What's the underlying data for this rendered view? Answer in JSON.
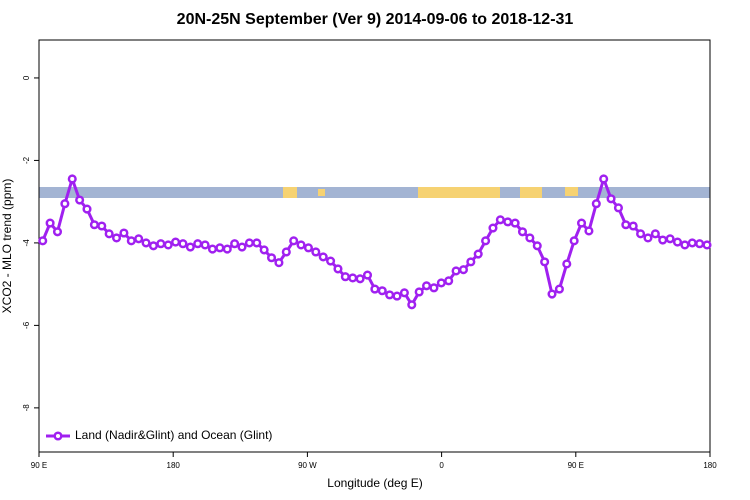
{
  "chart_data": {
    "type": "line",
    "title": "20N-25N September (Ver 9)   2014-09-06 to 2018-12-31",
    "x_label": "Longitude (deg E)",
    "y_label": "XCO2 - MLO trend (ppm)",
    "xlim": [
      90,
      540
    ],
    "ylim": [
      -9.07,
      0.92
    ],
    "xticks": [
      {
        "value": 90,
        "label": "90 E"
      },
      180,
      {
        "value": 270,
        "label": "90 W"
      },
      {
        "value": 360,
        "label": "0"
      },
      {
        "value": 450,
        "label": "90 E"
      },
      {
        "value": 540,
        "label": "180"
      }
    ],
    "yticks": [
      0,
      -2,
      -4,
      -6,
      -8
    ],
    "legend": "bottom-left",
    "x": [
      92.5,
      97.45,
      102.4,
      107.35,
      112.3,
      117.25,
      122.2,
      127.15,
      132.1,
      137.05,
      142,
      146.95,
      151.9,
      156.85,
      161.8,
      166.75,
      171.7,
      176.65,
      181.6,
      186.55,
      191.5,
      196.45,
      201.4,
      206.35,
      211.3,
      216.25,
      221.2,
      226.15,
      231.1,
      236.05,
      241,
      245.95,
      250.9,
      255.85,
      260.8,
      265.75,
      270.7,
      275.65,
      280.6,
      285.55,
      290.5,
      295.45,
      300.4,
      305.35,
      310.3,
      315.25,
      320.2,
      325.15,
      330.1,
      335.05,
      340,
      344.95,
      349.9,
      354.85,
      359.8,
      364.75,
      369.7,
      374.65,
      379.6,
      384.55,
      389.5,
      394.45,
      399.4,
      404.35,
      409.3,
      414.25,
      419.2,
      424.15,
      429.1,
      434.05,
      439,
      443.95,
      448.9,
      453.85,
      458.8,
      463.75,
      468.7,
      473.65,
      478.6,
      483.55,
      488.5,
      493.45,
      498.4,
      503.35,
      508.3,
      513.25,
      518.2,
      523.15,
      528.1,
      533.05,
      538
    ],
    "series": [
      {
        "name": "Land (Nadir&Glint) and Ocean (Glint)",
        "color": "#a020f0",
        "values": [
          -3.95,
          -3.52,
          -3.73,
          -3.05,
          -2.45,
          -2.96,
          -3.18,
          -3.56,
          -3.59,
          -3.78,
          -3.88,
          -3.76,
          -3.95,
          -3.9,
          -4.0,
          -4.07,
          -4.02,
          -4.05,
          -3.98,
          -4.02,
          -4.1,
          -4.02,
          -4.05,
          -4.15,
          -4.12,
          -4.15,
          -4.02,
          -4.1,
          -4.0,
          -4.0,
          -4.17,
          -4.36,
          -4.48,
          -4.22,
          -3.95,
          -4.05,
          -4.12,
          -4.22,
          -4.34,
          -4.44,
          -4.63,
          -4.82,
          -4.85,
          -4.87,
          -4.78,
          -5.12,
          -5.16,
          -5.26,
          -5.29,
          -5.21,
          -5.5,
          -5.19,
          -5.04,
          -5.09,
          -4.97,
          -4.92,
          -4.68,
          -4.65,
          -4.46,
          -4.27,
          -3.95,
          -3.64,
          -3.44,
          -3.49,
          -3.52,
          -3.73,
          -3.88,
          -4.07,
          -4.46,
          -5.24,
          -5.12,
          -4.51,
          -3.95,
          -3.52,
          -3.71,
          -3.05,
          -2.45,
          -2.93,
          -3.15,
          -3.56,
          -3.59,
          -3.78,
          -3.88,
          -3.78,
          -3.93,
          -3.9,
          -3.98,
          -4.05,
          -4.0,
          -4.02,
          -4.05
        ]
      }
    ]
  }
}
